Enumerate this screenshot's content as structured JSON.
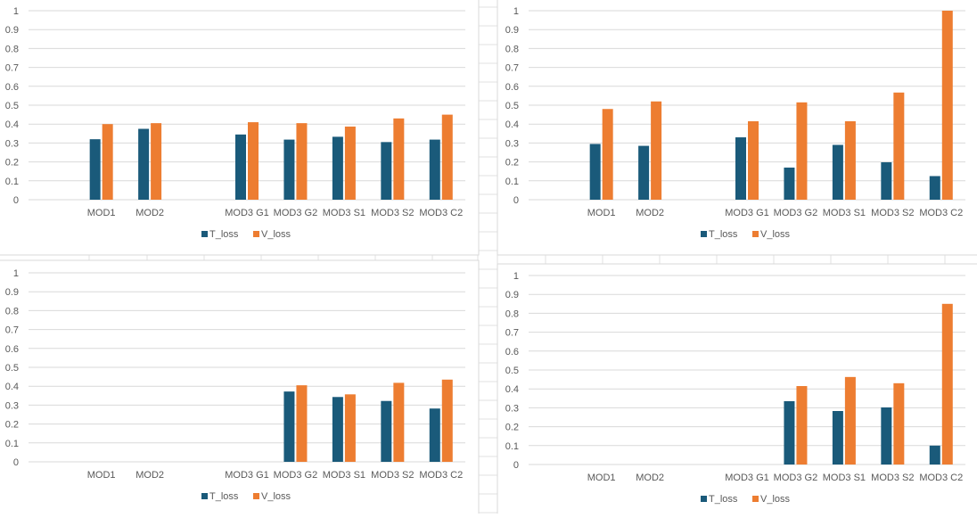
{
  "colors": {
    "t_loss": "#1a5a7a",
    "v_loss": "#ed7d31",
    "grid": "#d9d9d9",
    "axis_text": "#595959",
    "sheet_grid": "#e2e2e2"
  },
  "chart_data": [
    {
      "type": "bar",
      "categories": [
        "",
        "MOD1",
        "MOD2",
        "",
        "MOD3 G1",
        "MOD3 G2",
        "MOD3 S1",
        "MOD3 S2",
        "MOD3 C2"
      ],
      "series": [
        {
          "name": "T_loss",
          "values": [
            null,
            0.32,
            0.375,
            null,
            0.345,
            0.318,
            0.333,
            0.305,
            0.318
          ]
        },
        {
          "name": "V_loss",
          "values": [
            null,
            0.4,
            0.405,
            null,
            0.41,
            0.405,
            0.387,
            0.43,
            0.45
          ]
        }
      ],
      "yticks": [
        "0",
        "0.1",
        "0.2",
        "0.3",
        "0.4",
        "0.5",
        "0.6",
        "0.7",
        "0.8",
        "0.9",
        "1"
      ],
      "ylim": [
        0,
        1
      ],
      "legend": [
        "T_loss",
        "V_loss"
      ],
      "legend_position": "bottom"
    },
    {
      "type": "bar",
      "categories": [
        "",
        "MOD1",
        "MOD2",
        "",
        "MOD3 G1",
        "MOD3 G2",
        "MOD3 S1",
        "MOD3 S2",
        "MOD3 C2"
      ],
      "series": [
        {
          "name": "T_loss",
          "values": [
            null,
            0.295,
            0.285,
            null,
            0.33,
            0.17,
            0.29,
            0.198,
            0.125
          ]
        },
        {
          "name": "V_loss",
          "values": [
            null,
            0.48,
            0.52,
            null,
            0.415,
            0.515,
            0.415,
            0.567,
            1.0
          ]
        }
      ],
      "yticks": [
        "0",
        "0.1",
        "0.2",
        "0.3",
        "0.4",
        "0.5",
        "0.6",
        "0.7",
        "0.8",
        "0.9",
        "1"
      ],
      "ylim": [
        0,
        1
      ],
      "legend": [
        "T_loss",
        "V_loss"
      ],
      "legend_position": "bottom"
    },
    {
      "type": "bar",
      "categories": [
        "",
        "MOD1",
        "MOD2",
        "",
        "MOD3 G1",
        "MOD3 G2",
        "MOD3 S1",
        "MOD3 S2",
        "MOD3 C2"
      ],
      "series": [
        {
          "name": "T_loss",
          "values": [
            null,
            null,
            null,
            null,
            null,
            0.372,
            0.343,
            0.322,
            0.282
          ]
        },
        {
          "name": "V_loss",
          "values": [
            null,
            null,
            null,
            null,
            null,
            0.405,
            0.357,
            0.418,
            0.435
          ]
        }
      ],
      "yticks": [
        "0",
        "0.1",
        "0.2",
        "0.3",
        "0.4",
        "0.5",
        "0.6",
        "0.7",
        "0.8",
        "0.9",
        "1"
      ],
      "ylim": [
        0,
        1
      ],
      "legend": [
        "T_loss",
        "V_loss"
      ],
      "legend_position": "bottom"
    },
    {
      "type": "bar",
      "categories": [
        "",
        "MOD1",
        "MOD2",
        "",
        "MOD3 G1",
        "MOD3 G2",
        "MOD3 S1",
        "MOD3 S2",
        "MOD3 C2"
      ],
      "series": [
        {
          "name": "T_loss",
          "values": [
            null,
            null,
            null,
            null,
            null,
            0.335,
            0.283,
            0.302,
            0.1
          ]
        },
        {
          "name": "V_loss",
          "values": [
            null,
            null,
            null,
            null,
            null,
            0.415,
            0.463,
            0.43,
            0.85
          ]
        }
      ],
      "yticks": [
        "0",
        "0.1",
        "0.2",
        "0.3",
        "0.4",
        "0.5",
        "0.6",
        "0.7",
        "0.8",
        "0.9",
        "1"
      ],
      "ylim": [
        0,
        1
      ],
      "legend": [
        "T_loss",
        "V_loss"
      ],
      "legend_position": "bottom"
    }
  ]
}
